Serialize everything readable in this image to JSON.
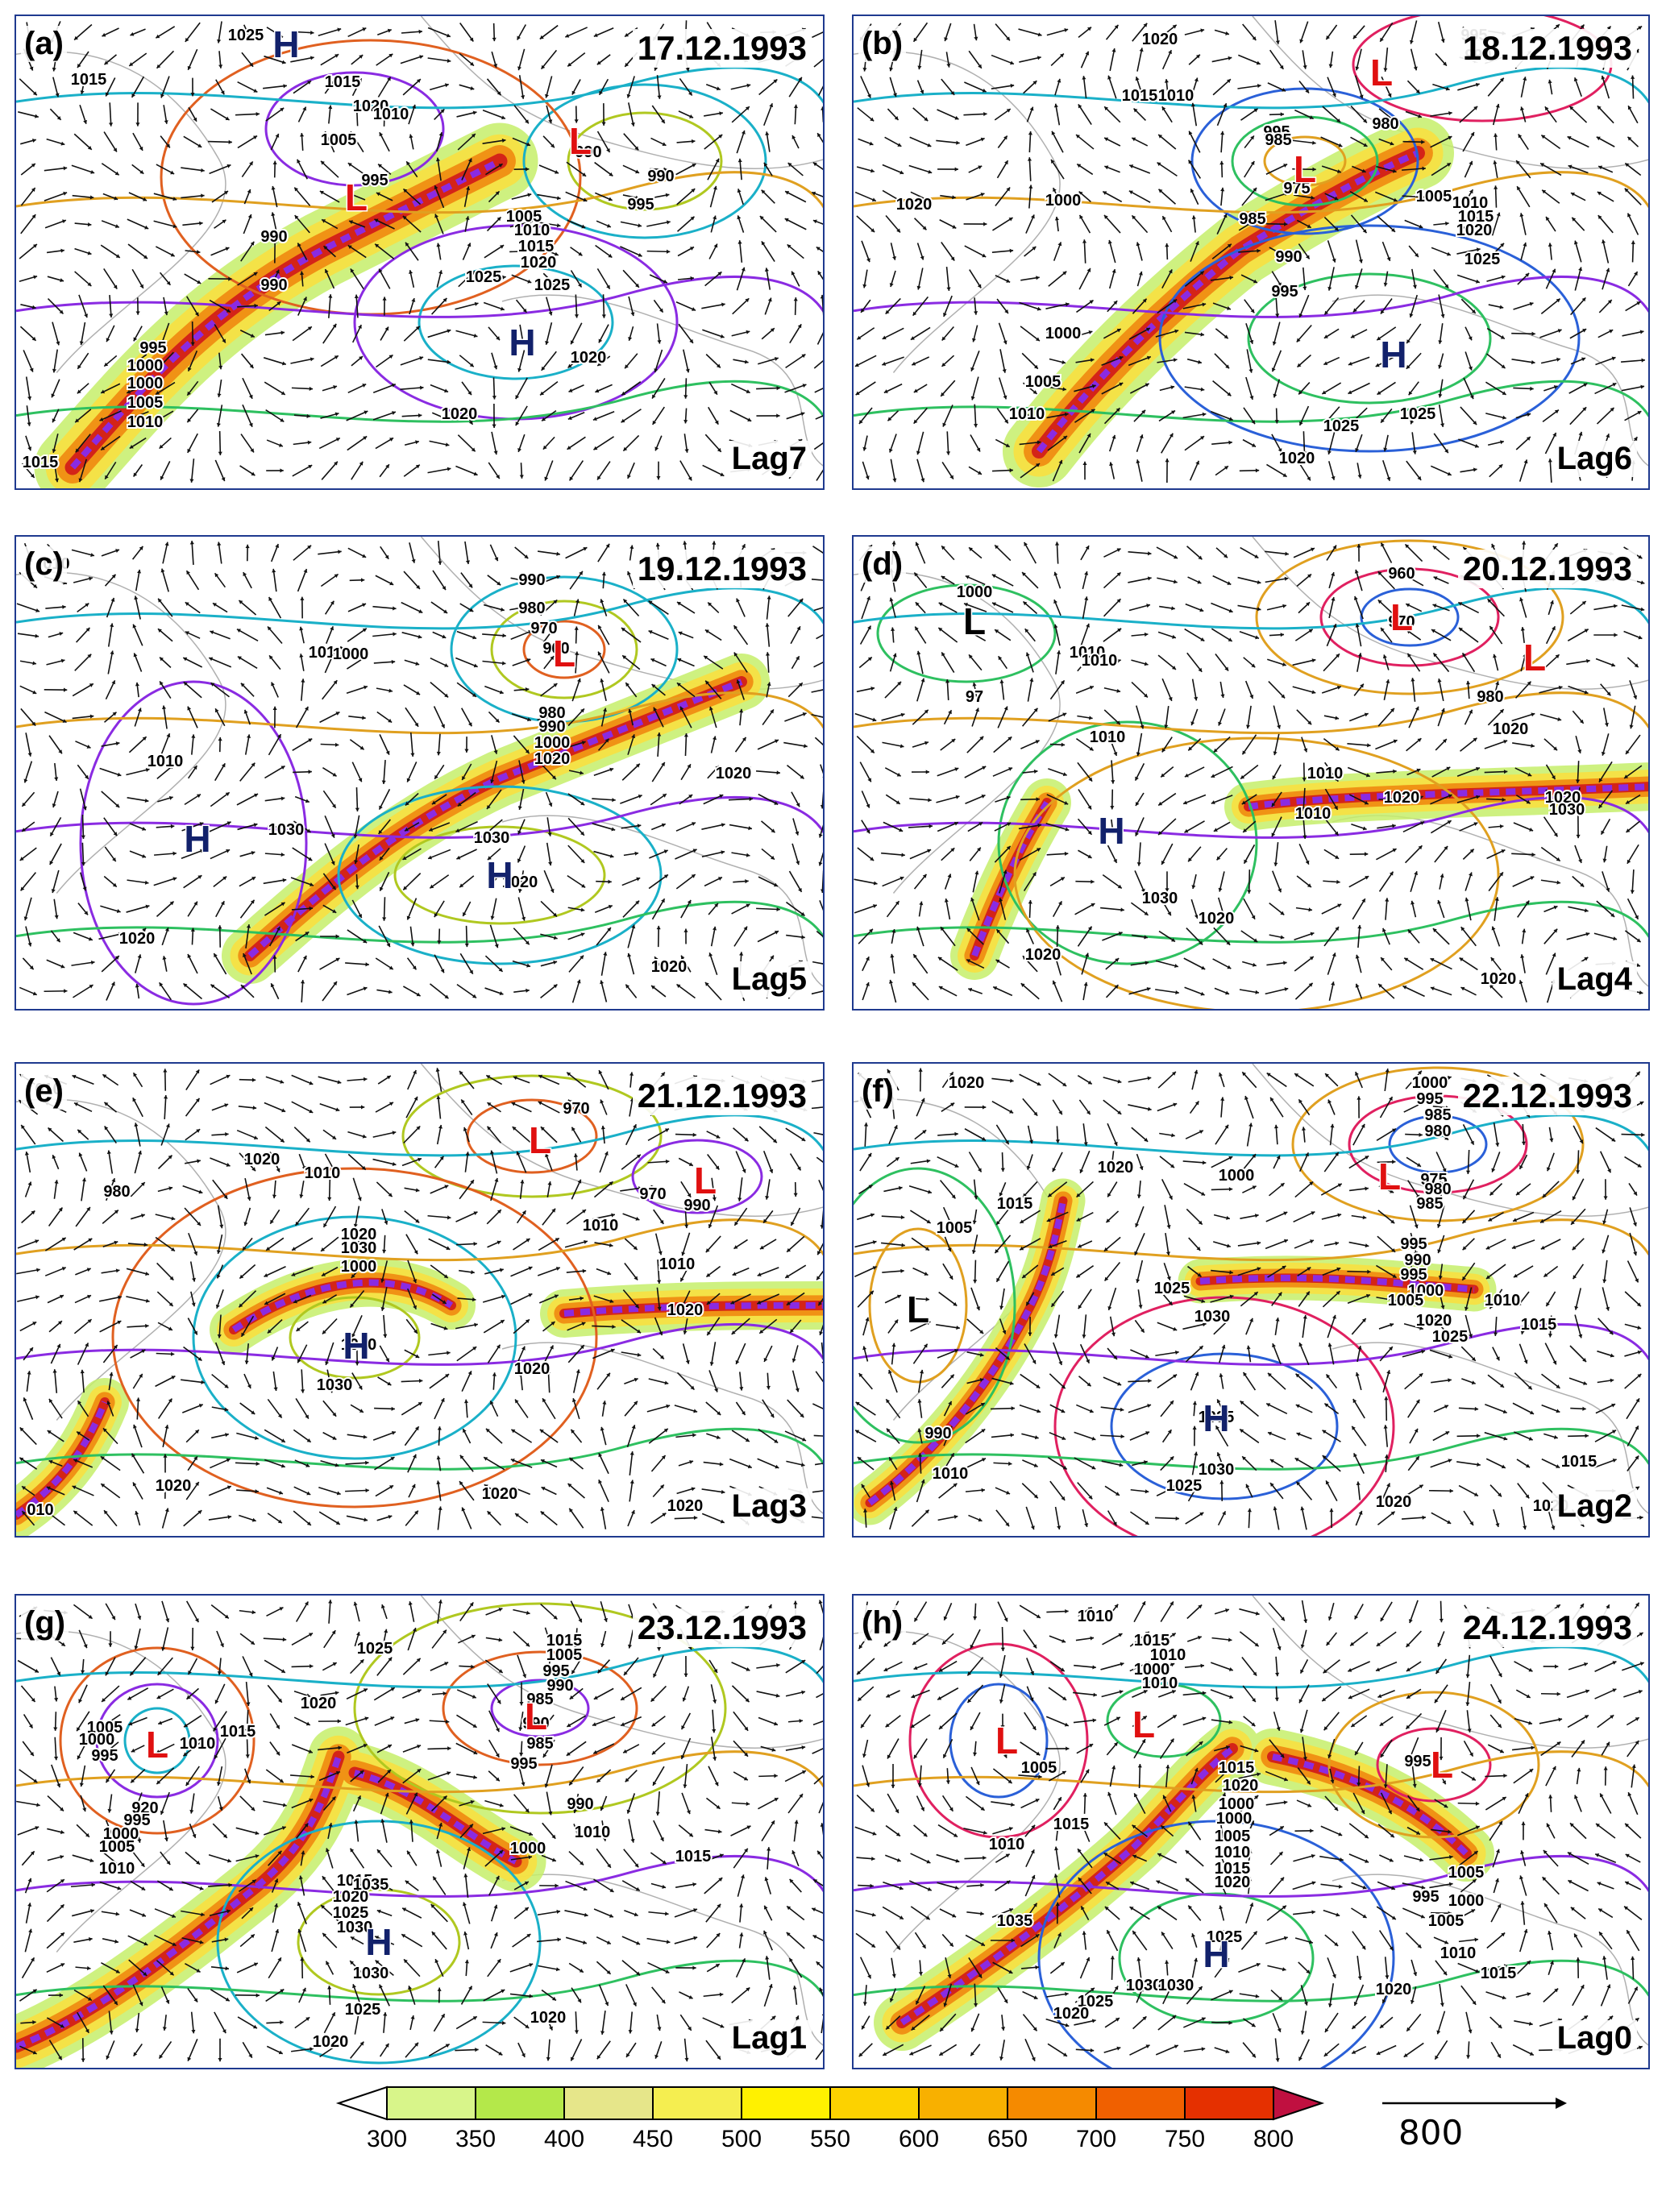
{
  "panels": [
    {
      "label": "(a)",
      "date": "17.12.1993",
      "lag": "Lag7",
      "contours": [
        "1025",
        "1015",
        "1015",
        "1020",
        "1010",
        "1005",
        "995",
        "990",
        "990",
        "995",
        "990",
        "1005",
        "1010",
        "1015",
        "1020",
        "1025",
        "1000",
        "1000",
        "1005",
        "1010",
        "995",
        "1020",
        "1025",
        "1020",
        "1015",
        "990"
      ],
      "centers": [
        {
          "type": "H",
          "color": "#12216b"
        },
        {
          "type": "L",
          "color": "#e01010"
        },
        {
          "type": "L",
          "color": "#e01010"
        },
        {
          "type": "H",
          "color": "#12216b"
        }
      ]
    },
    {
      "label": "(b)",
      "date": "18.12.1993",
      "lag": "Lag6",
      "contours": [
        "1020",
        "995",
        "990",
        "1015",
        "1010",
        "995",
        "985",
        "975",
        "980",
        "1000",
        "1020",
        "1005",
        "1010",
        "1015",
        "1020",
        "1025",
        "985",
        "990",
        "995",
        "1000",
        "1005",
        "1010",
        "1025",
        "1025",
        "1020"
      ],
      "centers": [
        {
          "type": "L",
          "color": "#e01010"
        },
        {
          "type": "L",
          "color": "#e01010"
        },
        {
          "type": "H",
          "color": "#12216b"
        }
      ]
    },
    {
      "label": "(c)",
      "date": "19.12.1993",
      "lag": "Lag5",
      "contours": [
        "010",
        "990",
        "980",
        "970",
        "960",
        "1010",
        "1000",
        "980",
        "990",
        "1000",
        "1020",
        "1020",
        "1010",
        "1030",
        "1030",
        "1020",
        "1020",
        "1020"
      ],
      "centers": [
        {
          "type": "L",
          "color": "#e01010"
        },
        {
          "type": "H",
          "color": "#12216b"
        },
        {
          "type": "H",
          "color": "#12216b"
        }
      ]
    },
    {
      "label": "(d)",
      "date": "20.12.1993",
      "lag": "Lag4",
      "contours": [
        "1000",
        "1010",
        "1010",
        "97",
        "960",
        "970",
        "980",
        "1020",
        "1010",
        "1010",
        "1020",
        "1010",
        "1020",
        "1030",
        "1030",
        "1020",
        "1020",
        "1020"
      ],
      "centers": [
        {
          "type": "L",
          "color": "#000000"
        },
        {
          "type": "L",
          "color": "#e01010"
        },
        {
          "type": "L",
          "color": "#e01010"
        },
        {
          "type": "H",
          "color": "#12216b"
        }
      ]
    },
    {
      "label": "(e)",
      "date": "21.12.1993",
      "lag": "Lag3",
      "contours": [
        "010",
        "970",
        "1020",
        "1010",
        "980",
        "970",
        "990",
        "1010",
        "1020",
        "1030",
        "1000",
        "1010",
        "1020",
        "1040",
        "1020",
        "1030",
        "1020",
        "1020",
        "1020",
        "010"
      ],
      "centers": [
        {
          "type": "L",
          "color": "#e01010"
        },
        {
          "type": "L",
          "color": "#e01010"
        },
        {
          "type": "H",
          "color": "#12216b"
        }
      ]
    },
    {
      "label": "(f)",
      "date": "22.12.1993",
      "lag": "Lag2",
      "contours": [
        "1020",
        "1000",
        "995",
        "985",
        "980",
        "1020",
        "1000",
        "975",
        "980",
        "985",
        "1015",
        "995",
        "1005",
        "990",
        "995",
        "1000",
        "1025",
        "1010",
        "1005",
        "1030",
        "1020",
        "1025",
        "1015",
        "1010",
        "1035",
        "1030",
        "1015",
        "1025",
        "1020",
        "1020",
        "990"
      ],
      "centers": [
        {
          "type": "L",
          "color": "#000000"
        },
        {
          "type": "L",
          "color": "#e01010"
        },
        {
          "type": "H",
          "color": "#12216b"
        }
      ]
    },
    {
      "label": "(g)",
      "date": "23.12.1993",
      "lag": "Lag1",
      "contours": [
        "1025",
        "1015",
        "1005",
        "995",
        "990",
        "985",
        "1020",
        "1015",
        "1010",
        "1005",
        "1000",
        "995",
        "990",
        "985",
        "920",
        "995",
        "1000",
        "1005",
        "1010",
        "1015",
        "1020",
        "1025",
        "1030",
        "995",
        "1000",
        "990",
        "1010",
        "1015",
        "1035",
        "1030",
        "1025",
        "1020",
        "1020"
      ],
      "centers": [
        {
          "type": "L",
          "color": "#e01010"
        },
        {
          "type": "L",
          "color": "#e01010"
        },
        {
          "type": "H",
          "color": "#12216b"
        }
      ]
    },
    {
      "label": "(h)",
      "date": "24.12.1993",
      "lag": "Lag0",
      "contours": [
        "1010",
        "1015",
        "1010",
        "1000",
        "995",
        "1005",
        "1015",
        "1010",
        "1010",
        "1015",
        "1020",
        "1000",
        "1000",
        "1005",
        "1010",
        "1015",
        "1020",
        "1025",
        "1030",
        "1035",
        "1030",
        "1025",
        "1020",
        "1005",
        "1000",
        "995",
        "1005",
        "1010",
        "1015",
        "1020"
      ],
      "centers": [
        {
          "type": "L",
          "color": "#e01010"
        },
        {
          "type": "L",
          "color": "#e01010"
        },
        {
          "type": "L",
          "color": "#e01010"
        },
        {
          "type": "H",
          "color": "#12216b"
        }
      ]
    }
  ],
  "colorbar": {
    "ticks": [
      "300",
      "350",
      "400",
      "450",
      "500",
      "550",
      "600",
      "650",
      "700",
      "750",
      "800"
    ],
    "colors": [
      "#ffffff",
      "#d8f58a",
      "#b4e84a",
      "#e6e68a",
      "#f5ee50",
      "#fff100",
      "#fcd200",
      "#f8b000",
      "#f58a00",
      "#f06000",
      "#e53000",
      "#c01040"
    ]
  },
  "reference_vector": {
    "label": "800"
  },
  "contour_colors": {
    "low_deep": "#8a2be2",
    "low": "#2a60d8",
    "mid_low": "#1ab0c8",
    "mid": "#2ec060",
    "mid_high": "#b0c820",
    "high": "#e0a020",
    "higher": "#e06020",
    "highest": "#e02060"
  }
}
